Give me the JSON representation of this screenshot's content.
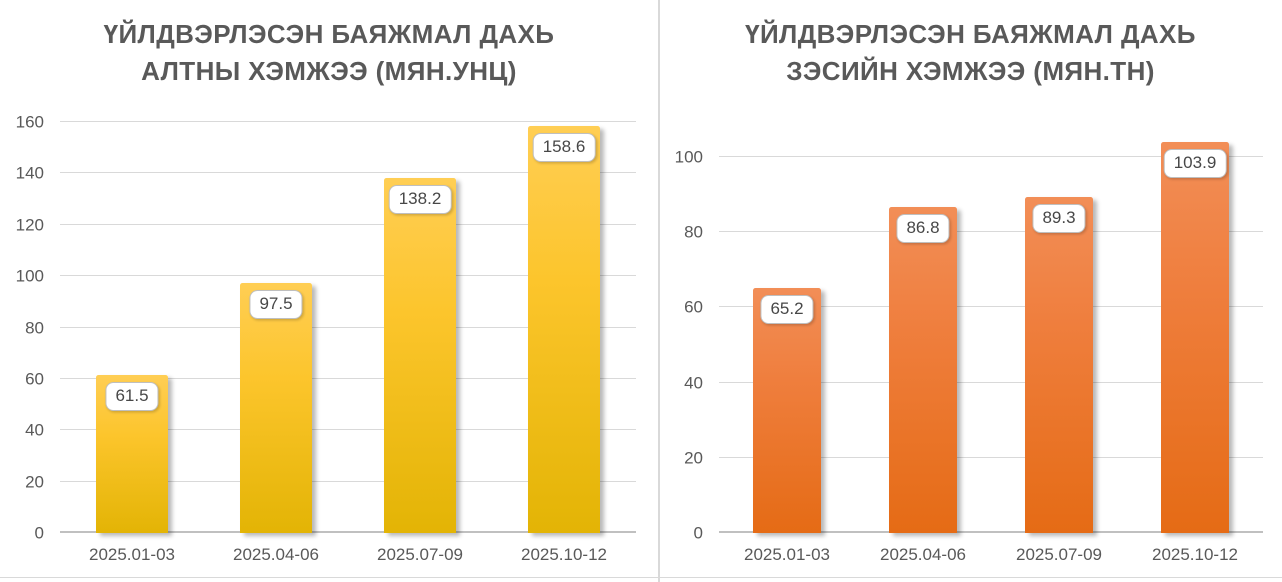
{
  "chart_data": [
    {
      "type": "bar",
      "title": "ҮЙЛДВЭРЛЭСЭН БАЯЖМАЛ ДАХЬ АЛТНЫ ХЭМЖЭЭ (МЯН.УНЦ)",
      "title_lines": [
        "ҮЙЛДВЭРЛЭСЭН БАЯЖМАЛ ДАХЬ",
        "АЛТНЫ ХЭМЖЭЭ (МЯН.УНЦ)"
      ],
      "categories": [
        "2025.01-03",
        "2025.04-06",
        "2025.07-09",
        "2025.10-12"
      ],
      "values": [
        61.5,
        97.5,
        138.2,
        158.6
      ],
      "value_labels": [
        "61.5",
        "97.5",
        "138.2",
        "158.6"
      ],
      "xlabel": "",
      "ylabel": "",
      "ylim": [
        0,
        160
      ],
      "yticks": [
        0,
        20,
        40,
        60,
        80,
        100,
        120,
        140,
        160
      ],
      "grid": true,
      "legend": false,
      "bar_colors": {
        "top": "#FFCE54",
        "mid": "#FCC52C",
        "bottom": "#E3B405"
      },
      "title_color": "#595959",
      "axis_label_color": "#595959",
      "gridline_color": "#D9D9D9",
      "data_label_box": {
        "background": "#FFFFFF",
        "border": "#BFBFBF"
      }
    },
    {
      "type": "bar",
      "title": "ҮЙЛДВЭРЛЭСЭН БАЯЖМАЛ ДАХЬ ЗЭСИЙН ХЭМЖЭЭ (МЯН.ТН)",
      "title_lines": [
        "ҮЙЛДВЭРЛЭСЭН БАЯЖМАЛ ДАХЬ",
        "ЗЭСИЙН ХЭМЖЭЭ (МЯН.ТН)"
      ],
      "categories": [
        "2025.01-03",
        "2025.04-06",
        "2025.07-09",
        "2025.10-12"
      ],
      "values": [
        65.2,
        86.8,
        89.3,
        103.9
      ],
      "value_labels": [
        "65.2",
        "86.8",
        "89.3",
        "103.9"
      ],
      "xlabel": "",
      "ylabel": "",
      "ylim": [
        0,
        100
      ],
      "yticks": [
        0,
        20,
        40,
        60,
        80,
        100
      ],
      "grid": true,
      "legend": false,
      "bar_colors": {
        "top": "#F28E57",
        "mid": "#EF7E3D",
        "bottom": "#E56B15"
      },
      "title_color": "#595959",
      "axis_label_color": "#595959",
      "gridline_color": "#D9D9D9",
      "data_label_box": {
        "background": "#FFFFFF",
        "border": "#BFBFBF"
      }
    }
  ]
}
